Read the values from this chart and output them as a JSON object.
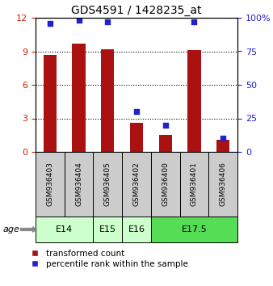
{
  "title": "GDS4591 / 1428235_at",
  "samples": [
    "GSM936403",
    "GSM936404",
    "GSM936405",
    "GSM936402",
    "GSM936400",
    "GSM936401",
    "GSM936406"
  ],
  "transformed_count": [
    8.7,
    9.7,
    9.2,
    2.6,
    1.5,
    9.1,
    1.1
  ],
  "percentile_rank": [
    96,
    98,
    97,
    30,
    20,
    97,
    10
  ],
  "age_groups": [
    {
      "label": "E14",
      "start": 0,
      "end": 1,
      "color": "#ccffcc"
    },
    {
      "label": "E15",
      "start": 2,
      "end": 2,
      "color": "#ccffcc"
    },
    {
      "label": "E16",
      "start": 3,
      "end": 3,
      "color": "#ccffcc"
    },
    {
      "label": "E17.5",
      "start": 4,
      "end": 6,
      "color": "#55dd55"
    }
  ],
  "ylim_left": [
    0,
    12
  ],
  "ylim_right": [
    0,
    100
  ],
  "yticks_left": [
    0,
    3,
    6,
    9,
    12
  ],
  "yticks_right": [
    0,
    25,
    50,
    75,
    100
  ],
  "bar_color": "#aa1111",
  "dot_color": "#2222cc",
  "bar_width": 0.45,
  "label_transformed": "transformed count",
  "label_percentile": "percentile rank within the sample",
  "left_tick_color": "#cc2200",
  "right_tick_color": "#2222cc",
  "sample_box_color": "#cccccc",
  "title_fontsize": 10,
  "tick_fontsize": 8,
  "sample_fontsize": 6.5,
  "age_fontsize": 8,
  "legend_fontsize": 7.5
}
